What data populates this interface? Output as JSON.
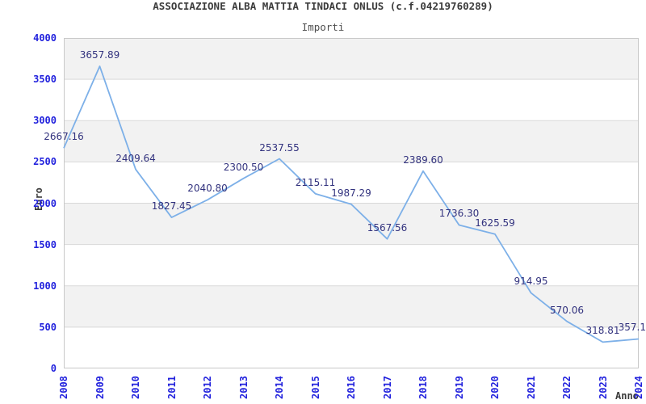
{
  "header": {
    "title": "ASSOCIAZIONE ALBA MATTIA TINDACI ONLUS (c.f.04219760289)",
    "subtitle": "Importi"
  },
  "chart_data": {
    "type": "line",
    "title": "ASSOCIAZIONE ALBA MATTIA TINDACI ONLUS (c.f.04219760289)",
    "subtitle": "Importi",
    "xlabel": "Anno",
    "ylabel": "Euro",
    "categories": [
      "2008",
      "2009",
      "2010",
      "2011",
      "2012",
      "2013",
      "2014",
      "2015",
      "2016",
      "2017",
      "2018",
      "2019",
      "2020",
      "2021",
      "2022",
      "2023",
      "2024"
    ],
    "values": [
      2667.16,
      3657.89,
      2409.64,
      1827.45,
      2040.8,
      2300.5,
      2537.55,
      2115.11,
      1987.29,
      1567.56,
      2389.6,
      1736.3,
      1625.59,
      914.95,
      570.06,
      318.81,
      357.1
    ],
    "point_labels": [
      "2667.16",
      "3657.89",
      "2409.64",
      "1827.45",
      "2040.80",
      "2300.50",
      "2537.55",
      "2115.11",
      "1987.29",
      "1567.56",
      "2389.60",
      "1736.30",
      "1625.59",
      "914.95",
      "570.06",
      "318.81",
      "357.1"
    ],
    "ylim": [
      0,
      4000
    ],
    "ytick_step": 500,
    "ytick_labels": [
      "0",
      "500",
      "1000",
      "1500",
      "2000",
      "2500",
      "3000",
      "3500",
      "4000"
    ],
    "grid": true,
    "legend": "none",
    "plot_bands": "alternating gray starting at top band",
    "colors": {
      "line": "#7db0e8",
      "point_label": "#32327e",
      "tick_label": "#2222dd",
      "band": "#f2f2f2",
      "grid": "#d9d9d9",
      "border": "#c9c9c9",
      "title": "#3b3b3b",
      "subtitle": "#4f4f4f",
      "axis_title": "#3b3b3b",
      "background": "#ffffff"
    }
  }
}
